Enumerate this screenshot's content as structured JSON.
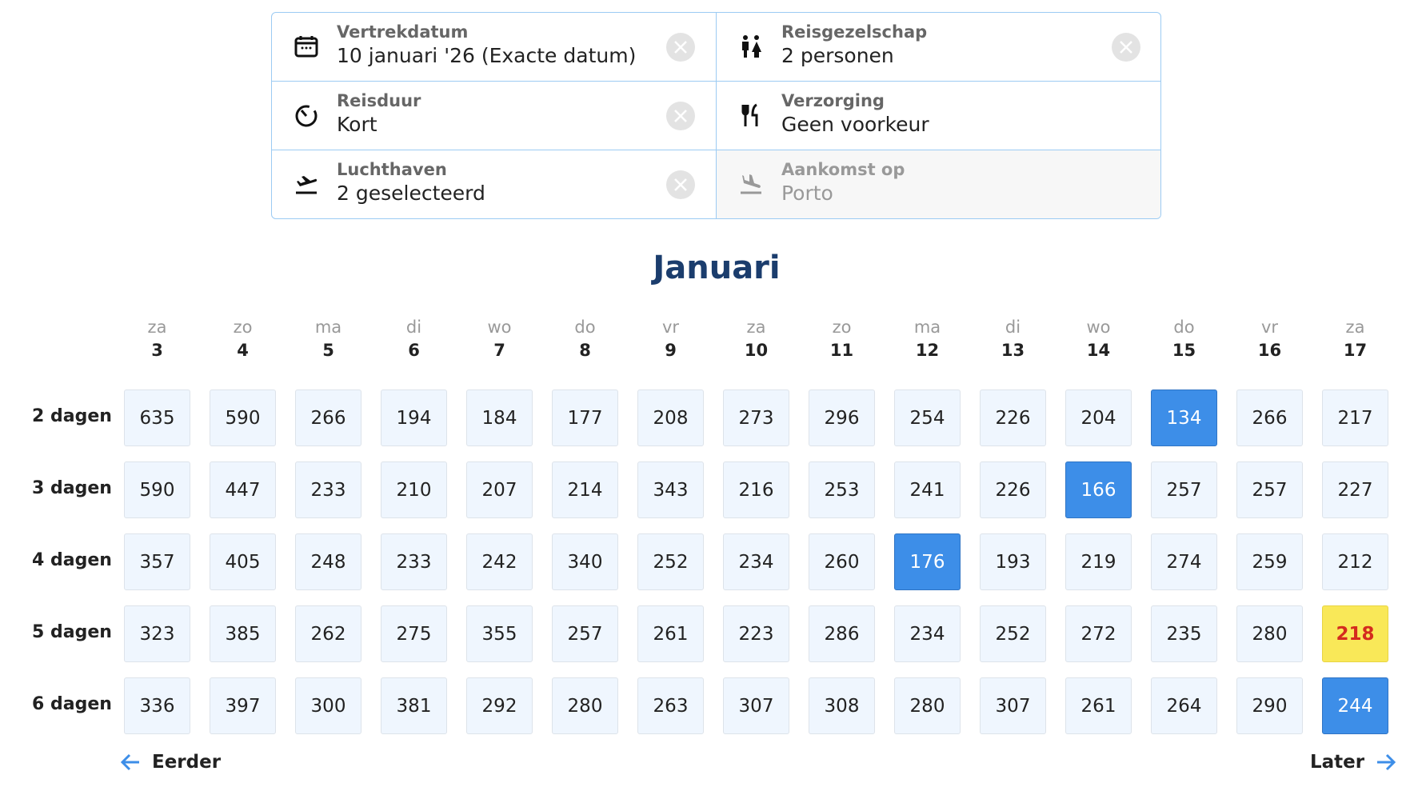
{
  "filters": [
    {
      "label": "Vertrekdatum",
      "value": "10 januari '26  (Exacte datum)",
      "icon": "calendar-icon",
      "clearable": true,
      "disabled": false
    },
    {
      "label": "Reisgezelschap",
      "value": "2 personen",
      "icon": "people-icon",
      "clearable": true,
      "disabled": false
    },
    {
      "label": "Reisduur",
      "value": "Kort",
      "icon": "duration-icon",
      "clearable": true,
      "disabled": false
    },
    {
      "label": "Verzorging",
      "value": "Geen voorkeur",
      "icon": "cutlery-icon",
      "clearable": false,
      "disabled": false
    },
    {
      "label": "Luchthaven",
      "value": "2 geselecteerd",
      "icon": "departure-icon",
      "clearable": true,
      "disabled": false
    },
    {
      "label": "Aankomst op",
      "value": "Porto",
      "icon": "arrival-icon",
      "clearable": false,
      "disabled": true
    }
  ],
  "month": "Januari",
  "days": [
    [
      "za",
      "3"
    ],
    [
      "zo",
      "4"
    ],
    [
      "ma",
      "5"
    ],
    [
      "di",
      "6"
    ],
    [
      "wo",
      "7"
    ],
    [
      "do",
      "8"
    ],
    [
      "vr",
      "9"
    ],
    [
      "za",
      "10"
    ],
    [
      "zo",
      "11"
    ],
    [
      "ma",
      "12"
    ],
    [
      "di",
      "13"
    ],
    [
      "wo",
      "14"
    ],
    [
      "do",
      "15"
    ],
    [
      "vr",
      "16"
    ],
    [
      "za",
      "17"
    ]
  ],
  "rows": [
    {
      "label": "2 dagen",
      "prices": [
        "635",
        "590",
        "266",
        "194",
        "184",
        "177",
        "208",
        "273",
        "296",
        "254",
        "226",
        "204",
        "134",
        "266",
        "217"
      ],
      "selected": 12
    },
    {
      "label": "3 dagen",
      "prices": [
        "590",
        "447",
        "233",
        "210",
        "207",
        "214",
        "343",
        "216",
        "253",
        "241",
        "226",
        "166",
        "257",
        "257",
        "227"
      ],
      "selected": 11
    },
    {
      "label": "4 dagen",
      "prices": [
        "357",
        "405",
        "248",
        "233",
        "242",
        "340",
        "252",
        "234",
        "260",
        "176",
        "193",
        "219",
        "274",
        "259",
        "212"
      ],
      "selected": 9
    },
    {
      "label": "5 dagen",
      "prices": [
        "323",
        "385",
        "262",
        "275",
        "355",
        "257",
        "261",
        "223",
        "286",
        "234",
        "252",
        "272",
        "235",
        "280",
        "218"
      ],
      "highlighted": 14
    },
    {
      "label": "6 dagen",
      "prices": [
        "336",
        "397",
        "300",
        "381",
        "292",
        "280",
        "263",
        "307",
        "308",
        "280",
        "307",
        "261",
        "264",
        "290",
        "244"
      ],
      "selected": 14
    }
  ],
  "nav": {
    "prev": "Eerder",
    "next": "Later"
  },
  "colors": {
    "selected": "#3d8ee8",
    "highlight": "#f9e858",
    "highlight_text": "#d42b1e",
    "title": "#1b3d6d",
    "accent": "#3d8ee8"
  }
}
